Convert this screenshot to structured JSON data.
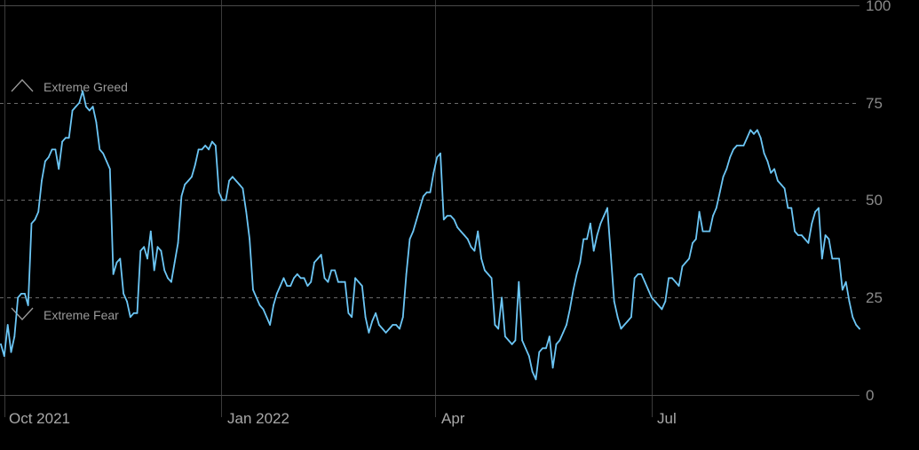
{
  "chart_data": {
    "type": "line",
    "title": "",
    "xlabel": "",
    "ylabel": "",
    "ylim": [
      0,
      100
    ],
    "y_ticks": [
      "0",
      "25",
      "50",
      "75",
      "100"
    ],
    "x_ticks": [
      "Oct 2021",
      "Jan 2022",
      "Apr",
      "Jul"
    ],
    "annotations": {
      "greed": {
        "label": "Extreme Greed",
        "value": 75,
        "icon": "chevron-up-icon"
      },
      "fear": {
        "label": "Extreme Fear",
        "value": 25,
        "icon": "chevron-down-icon"
      }
    },
    "grid": true,
    "line_color": "#6cc6f5",
    "series": [
      {
        "values": [
          13,
          10,
          18,
          11,
          15,
          25,
          26,
          26,
          23,
          44,
          45,
          47,
          55,
          60,
          61,
          63,
          63,
          58,
          65,
          66,
          66,
          73,
          74,
          75,
          78,
          74,
          73,
          74,
          70,
          63,
          62,
          60,
          58,
          31,
          34,
          35,
          26,
          24,
          20,
          21,
          21,
          37,
          38,
          35,
          42,
          32,
          38,
          37,
          32,
          30,
          29,
          34,
          39,
          51,
          54,
          55,
          56,
          59,
          63,
          63,
          64,
          63,
          65,
          64,
          52,
          50,
          50,
          55,
          56,
          55,
          54,
          53,
          47,
          40,
          27,
          25,
          23,
          22,
          20,
          18,
          23,
          26,
          28,
          30,
          28,
          28,
          30,
          31,
          30,
          30,
          28,
          29,
          34,
          35,
          36,
          30,
          29,
          32,
          32,
          29,
          29,
          29,
          21,
          20,
          30,
          29,
          28,
          20,
          16,
          19,
          21,
          18,
          17,
          16,
          17,
          18,
          18,
          17,
          20,
          31,
          40,
          42,
          45,
          48,
          51,
          52,
          52,
          57,
          61,
          62,
          45,
          46,
          46,
          45,
          43,
          42,
          41,
          40,
          38,
          37,
          42,
          35,
          32,
          31,
          30,
          18,
          17,
          25,
          15,
          14,
          13,
          14,
          29,
          14,
          12,
          10,
          6,
          4,
          11,
          12,
          12,
          15,
          7,
          13,
          14,
          16,
          18,
          22,
          27,
          31,
          34,
          40,
          40,
          44,
          37,
          41,
          44,
          46,
          48,
          36,
          24,
          20,
          17,
          18,
          19,
          20,
          30,
          31,
          31,
          29,
          27,
          25,
          24,
          23,
          22,
          24,
          30,
          30,
          29,
          28,
          33,
          34,
          35,
          39,
          40,
          47,
          42,
          42,
          42,
          46,
          48,
          52,
          56,
          58,
          61,
          63,
          64,
          64,
          64,
          66,
          68,
          67,
          68,
          66,
          62,
          60,
          57,
          58,
          55,
          54,
          53,
          48,
          48,
          42,
          41,
          41,
          40,
          39,
          44,
          47,
          48,
          35,
          41,
          40,
          35,
          35,
          35,
          27,
          29,
          24,
          20,
          18,
          17
        ]
      }
    ]
  }
}
